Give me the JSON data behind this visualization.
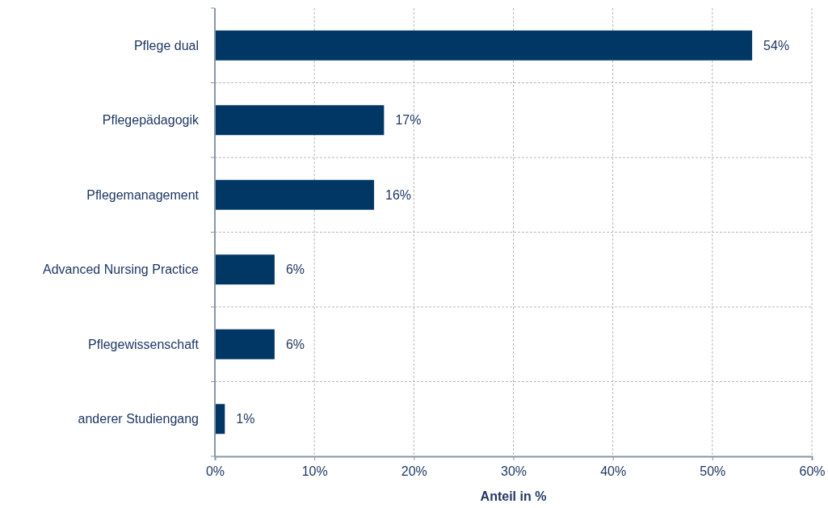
{
  "chart_data": {
    "type": "bar",
    "orientation": "horizontal",
    "xlabel": "Anteil in %",
    "categories": [
      "Pflege dual",
      "Pflegepädagogik",
      "Pflegemanagement",
      "Advanced Nursing Practice",
      "Pflegewissenschaft",
      "anderer Studiengang"
    ],
    "values": [
      54,
      17,
      16,
      6,
      6,
      1
    ],
    "color": "#003764",
    "value_labels": [
      "54%",
      "17%",
      "16%",
      "6%",
      "6%",
      "1%"
    ],
    "xlim": [
      0,
      60
    ],
    "xticks": [
      {
        "value": 0,
        "label": "0%"
      },
      {
        "value": 10,
        "label": "10%"
      },
      {
        "value": 20,
        "label": "20%"
      },
      {
        "value": 30,
        "label": "30%"
      },
      {
        "value": 40,
        "label": "40%"
      },
      {
        "value": 50,
        "label": "50%"
      },
      {
        "value": 60,
        "label": "60%"
      }
    ],
    "grid": true
  }
}
